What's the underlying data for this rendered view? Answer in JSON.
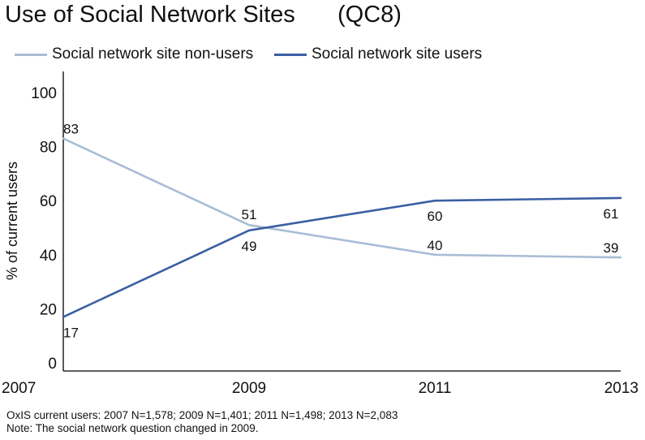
{
  "title": "Use of Social Network Sites",
  "question_code": "(QC8)",
  "notes": [
    "OxIS current users: 2007 N=1,578; 2009 N=1,401; 2011 N=1,498; 2013 N=2,083",
    "Note: The social network question changed in 2009."
  ],
  "chart_data": {
    "type": "line",
    "title": "Use of Social Network Sites",
    "x": [
      "2007",
      "2009",
      "2011",
      "2013"
    ],
    "xlabel": "",
    "ylabel": "% of current users",
    "ylim": [
      0,
      100
    ],
    "yticks": [
      0,
      20,
      40,
      60,
      80,
      100
    ],
    "legend_position": "top-left",
    "grid": false,
    "series": [
      {
        "name": "Social network site non-users",
        "values": [
          83,
          51,
          40,
          39
        ],
        "labels": [
          "83",
          "51",
          "40",
          "39"
        ],
        "color": "#a9bcd6"
      },
      {
        "name": "Social network site users",
        "values": [
          17,
          49,
          60,
          61
        ],
        "labels": [
          "17",
          "49",
          "60",
          "61"
        ],
        "color": "#3a5fa3"
      }
    ]
  }
}
